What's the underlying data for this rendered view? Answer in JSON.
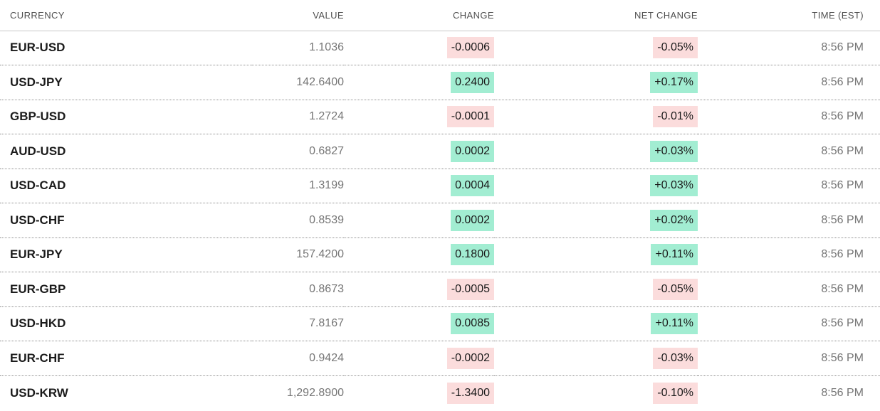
{
  "table": {
    "columns": [
      {
        "key": "currency",
        "label": "CURRENCY"
      },
      {
        "key": "value",
        "label": "VALUE"
      },
      {
        "key": "change",
        "label": "CHANGE"
      },
      {
        "key": "net_change",
        "label": "NET CHANGE"
      },
      {
        "key": "time",
        "label": "TIME (EST)"
      }
    ],
    "rows": [
      {
        "currency": "EUR-USD",
        "value": "1.1036",
        "change": "-0.0006",
        "net_change": "-0.05%",
        "direction": "down",
        "time": "8:56 PM"
      },
      {
        "currency": "USD-JPY",
        "value": "142.6400",
        "change": "0.2400",
        "net_change": "+0.17%",
        "direction": "up",
        "time": "8:56 PM"
      },
      {
        "currency": "GBP-USD",
        "value": "1.2724",
        "change": "-0.0001",
        "net_change": "-0.01%",
        "direction": "down",
        "time": "8:56 PM"
      },
      {
        "currency": "AUD-USD",
        "value": "0.6827",
        "change": "0.0002",
        "net_change": "+0.03%",
        "direction": "up",
        "time": "8:56 PM"
      },
      {
        "currency": "USD-CAD",
        "value": "1.3199",
        "change": "0.0004",
        "net_change": "+0.03%",
        "direction": "up",
        "time": "8:56 PM"
      },
      {
        "currency": "USD-CHF",
        "value": "0.8539",
        "change": "0.0002",
        "net_change": "+0.02%",
        "direction": "up",
        "time": "8:56 PM"
      },
      {
        "currency": "EUR-JPY",
        "value": "157.4200",
        "change": "0.1800",
        "net_change": "+0.11%",
        "direction": "up",
        "time": "8:56 PM"
      },
      {
        "currency": "EUR-GBP",
        "value": "0.8673",
        "change": "-0.0005",
        "net_change": "-0.05%",
        "direction": "down",
        "time": "8:56 PM"
      },
      {
        "currency": "USD-HKD",
        "value": "7.8167",
        "change": "0.0085",
        "net_change": "+0.11%",
        "direction": "up",
        "time": "8:56 PM"
      },
      {
        "currency": "EUR-CHF",
        "value": "0.9424",
        "change": "-0.0002",
        "net_change": "-0.03%",
        "direction": "down",
        "time": "8:56 PM"
      },
      {
        "currency": "USD-KRW",
        "value": "1,292.8900",
        "change": "-1.3400",
        "net_change": "-0.10%",
        "direction": "down",
        "time": "8:56 PM"
      }
    ]
  },
  "colors": {
    "positive_bg": "#a2edd2",
    "negative_bg": "#fbdcdc",
    "currency_text": "#1b1b1b",
    "muted_text": "#757575",
    "header_text": "#4f4f4f"
  }
}
